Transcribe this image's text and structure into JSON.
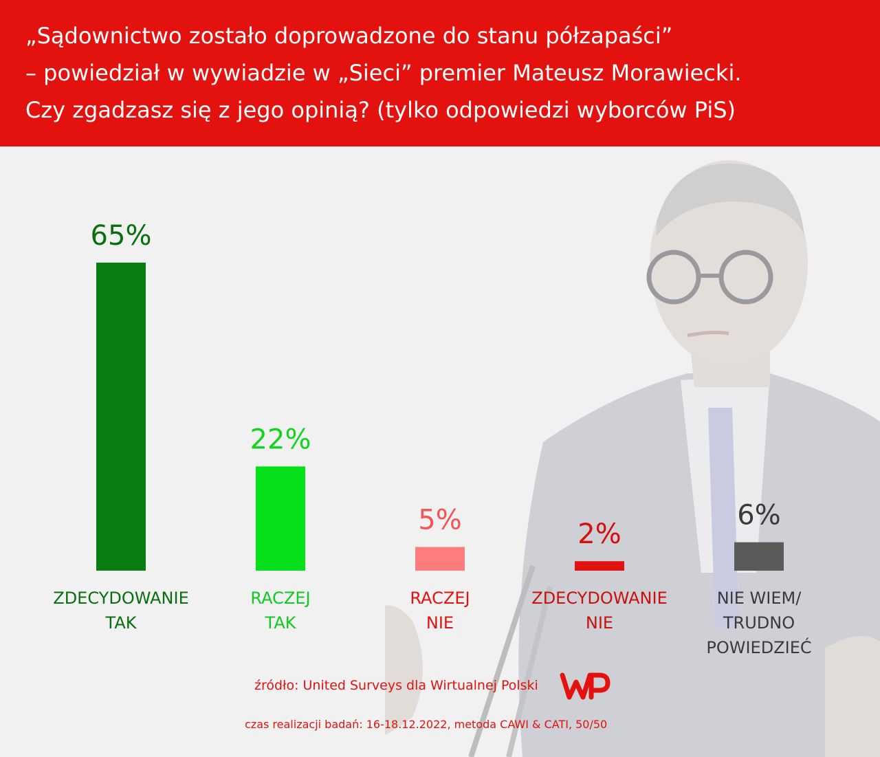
{
  "header": {
    "title_lines": [
      "„Sądownictwo zostało doprowadzone do stanu półzapaści”",
      "– powiedział w wywiadzie w „Sieci” premier Mateusz Morawiecki.",
      "Czy zgadzasz się z jego opinią? (tylko odpowiedzi wyborców PiS)"
    ]
  },
  "chart_data": {
    "type": "bar",
    "categories": [
      [
        "ZDECYDOWANIE",
        "TAK"
      ],
      [
        "RACZEJ",
        "TAK"
      ],
      [
        "RACZEJ",
        "NIE"
      ],
      [
        "ZDECYDOWANIE",
        "NIE"
      ],
      [
        "NIE WIEM/",
        "TRUDNO",
        "POWIEDZIEĆ"
      ]
    ],
    "values": [
      65,
      22,
      5,
      2,
      6
    ],
    "value_labels": [
      "65%",
      "22%",
      "5%",
      "2%",
      "6%"
    ],
    "unit": "%",
    "colors": [
      "#0a7d12",
      "#06e01a",
      "#fd7c7c",
      "#e1120f",
      "#5a5a5a"
    ],
    "label_colors": [
      "#0a6e10",
      "#12c822",
      "#e3120f",
      "#c8100d",
      "#3a3a3a"
    ],
    "value_label_colors": [
      "#0a6e10",
      "#12d41f",
      "#f25555",
      "#d4100d",
      "#3a3a3a"
    ]
  },
  "footer": {
    "source": "źródło: United Surveys dla Wirtualnej Polski",
    "period": "czas realizacji badań: 16-18.12.2022, metoda CAWI & CATI, 50/50",
    "logo": "WP"
  }
}
